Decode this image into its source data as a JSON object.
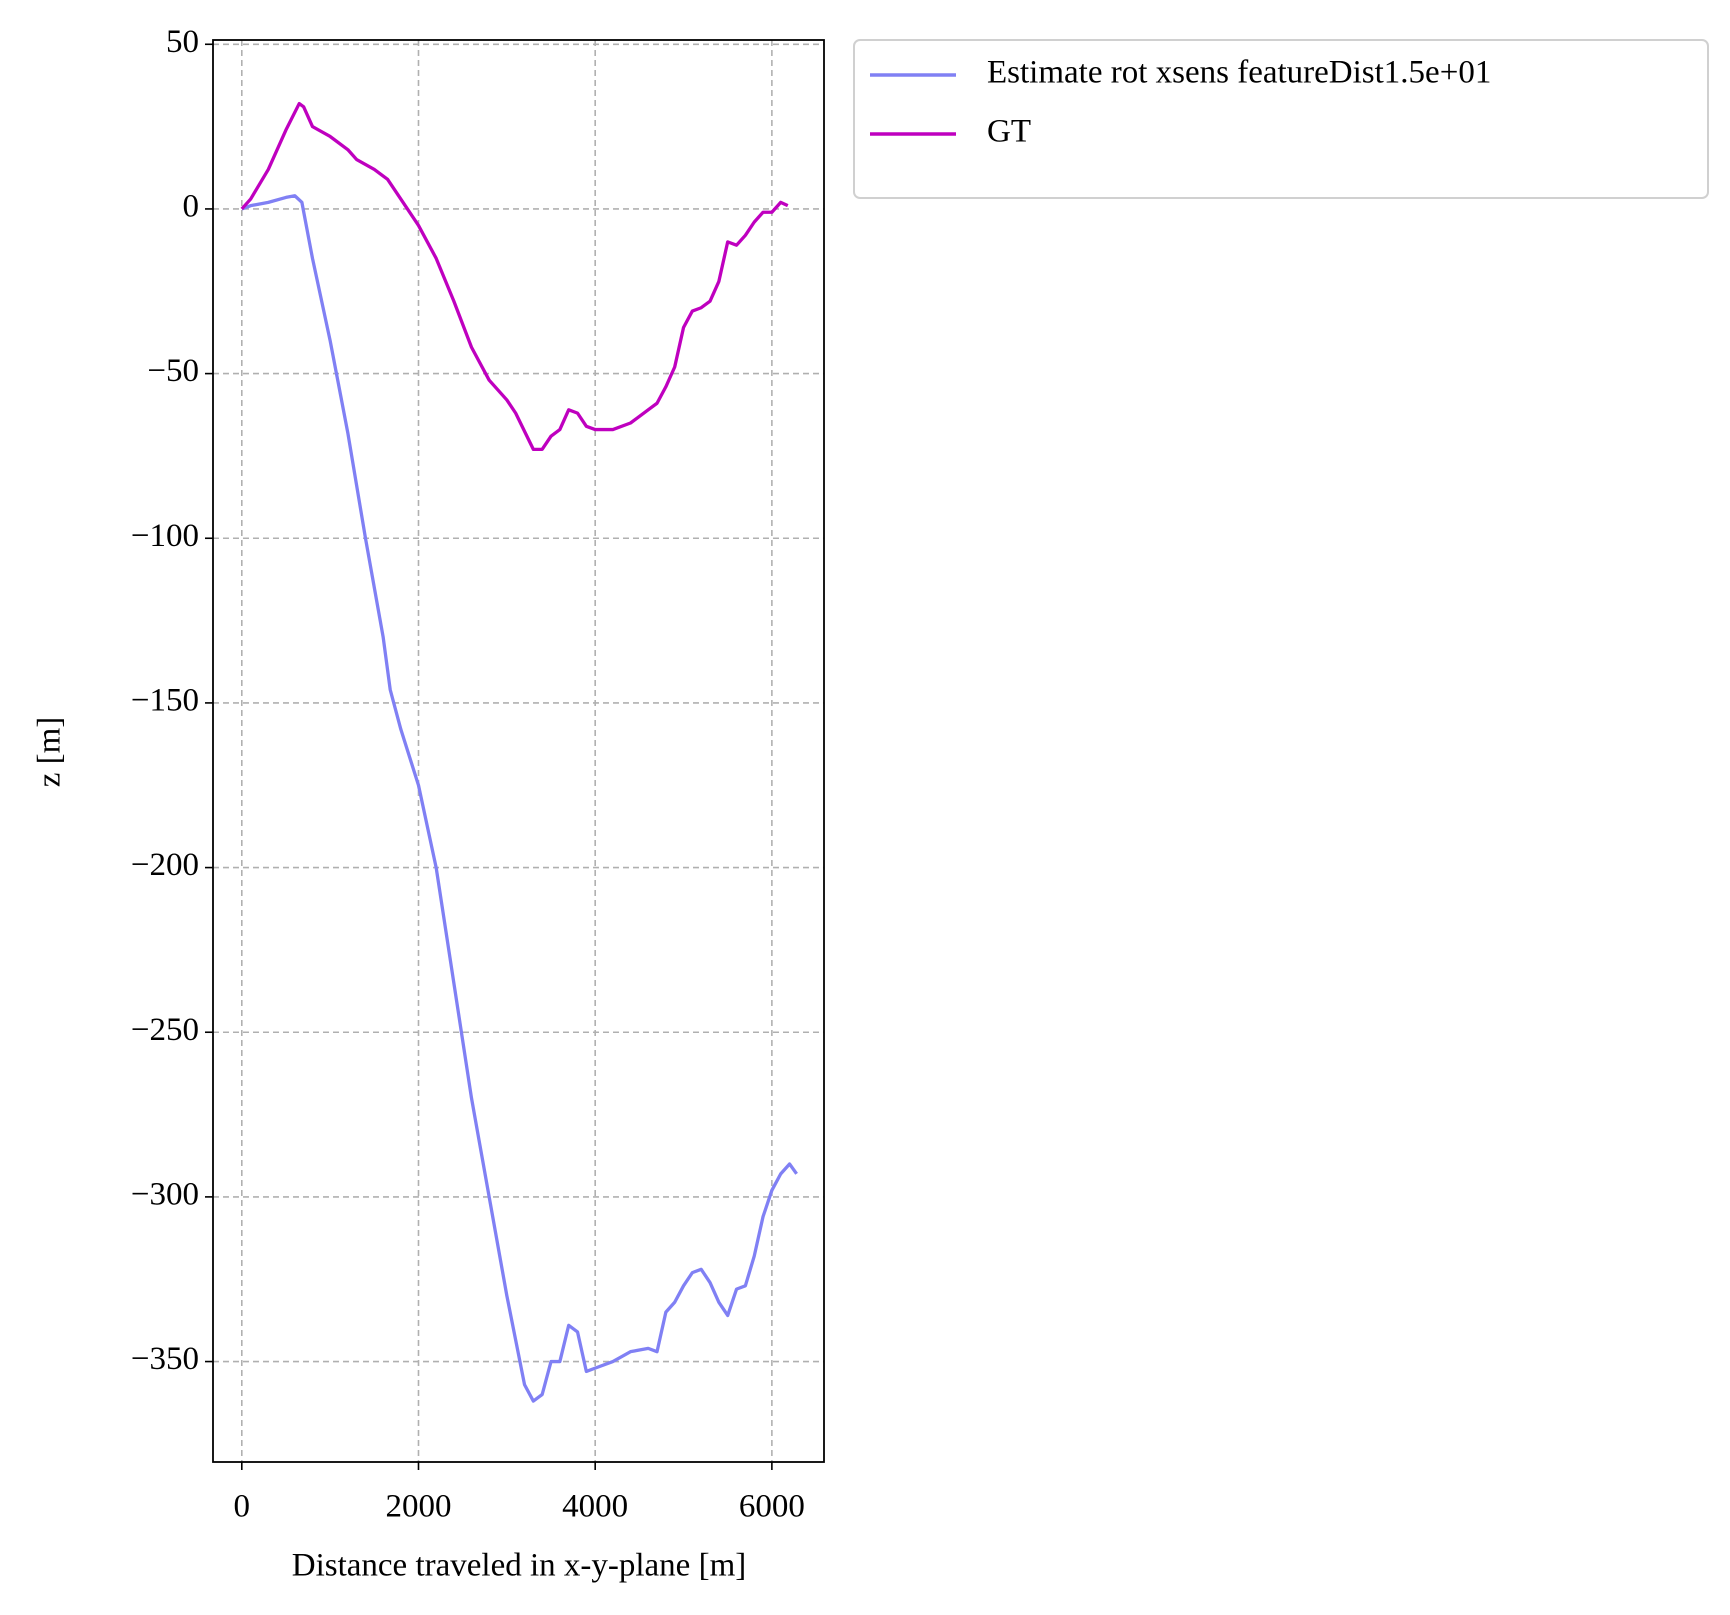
{
  "chart_data": {
    "type": "line",
    "xlabel": "Distance traveled in x-y-plane [m]",
    "ylabel": "z [m]",
    "xlim": [
      -326,
      6590
    ],
    "ylim": [
      -380.5,
      51.3
    ],
    "xticks": [
      0,
      2000,
      4000,
      6000
    ],
    "yticks": [
      {
        "value": -350,
        "label": "−350"
      },
      {
        "value": -300,
        "label": "−300"
      },
      {
        "value": -250,
        "label": "−250"
      },
      {
        "value": -200,
        "label": "−200"
      },
      {
        "value": -150,
        "label": "−150"
      },
      {
        "value": -100,
        "label": "−100"
      },
      {
        "value": -50,
        "label": "−50"
      },
      0,
      50
    ],
    "grid": true,
    "legend": "outside-upper-right",
    "series": [
      {
        "name": "Estimate rot xsens featureDist1.5e+01",
        "color": "#8080f4",
        "x": [
          0,
          100,
          300,
          500,
          600,
          680,
          800,
          1000,
          1200,
          1400,
          1600,
          1680,
          1800,
          2000,
          2200,
          2400,
          2600,
          2800,
          3000,
          3200,
          3300,
          3400,
          3500,
          3600,
          3700,
          3800,
          3900,
          4000,
          4200,
          4400,
          4600,
          4700,
          4800,
          4900,
          5000,
          5100,
          5200,
          5300,
          5400,
          5500,
          5600,
          5700,
          5800,
          5900,
          6000,
          6100,
          6200,
          6280
        ],
        "values": [
          0,
          1,
          2,
          3.5,
          4,
          2,
          -15,
          -40,
          -68,
          -100,
          -130,
          -146,
          -158,
          -175,
          -200,
          -235,
          -270,
          -300,
          -330,
          -357,
          -362,
          -360,
          -350,
          -350,
          -339,
          -341,
          -353,
          -352,
          -350,
          -347,
          -346,
          -347,
          -335,
          -332,
          -327,
          -323,
          -322,
          -326,
          -332,
          -336,
          -328,
          -327,
          -318,
          -306,
          -298,
          -293,
          -290,
          -293
        ]
      },
      {
        "name": "GT",
        "color": "#bf00bf",
        "x": [
          0,
          100,
          300,
          500,
          650,
          700,
          800,
          1000,
          1200,
          1300,
          1500,
          1650,
          1800,
          2000,
          2200,
          2400,
          2600,
          2800,
          3000,
          3100,
          3300,
          3400,
          3500,
          3600,
          3700,
          3800,
          3900,
          4000,
          4200,
          4400,
          4600,
          4700,
          4800,
          4900,
          5000,
          5100,
          5200,
          5300,
          5400,
          5500,
          5600,
          5700,
          5800,
          5900,
          6000,
          6100,
          6180
        ],
        "values": [
          0,
          3,
          12,
          24,
          32,
          31,
          25,
          22,
          18,
          15,
          12,
          9,
          3,
          -5,
          -15,
          -28,
          -42,
          -52,
          -58,
          -62,
          -73,
          -73,
          -69,
          -67,
          -61,
          -62,
          -66,
          -67,
          -67,
          -65,
          -61,
          -59,
          -54,
          -48,
          -36,
          -31,
          -30,
          -28,
          -22,
          -10,
          -11,
          -8,
          -4,
          -1,
          -1,
          2,
          1
        ]
      }
    ]
  }
}
